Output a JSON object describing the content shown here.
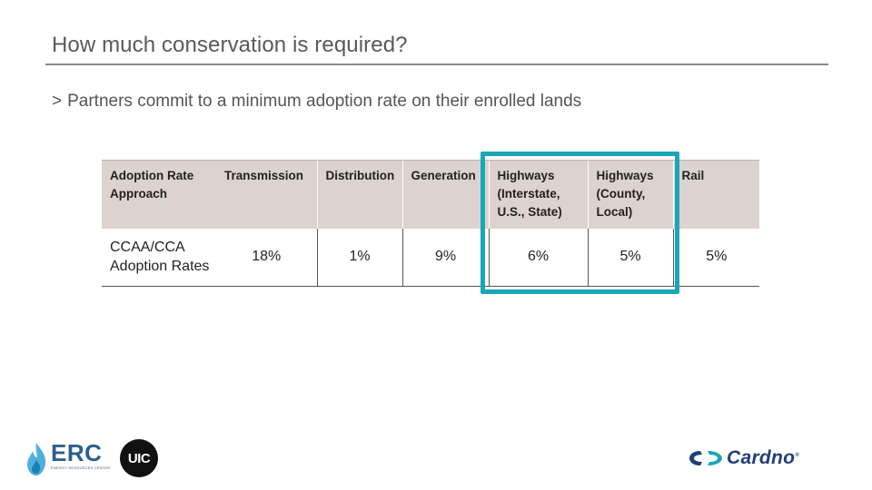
{
  "slide": {
    "title": "How much conservation is required?",
    "bullet_marker": ">",
    "bullet": "Partners commit to a minimum adoption rate on their enrolled lands"
  },
  "table": {
    "headers": [
      [
        "Adoption Rate",
        "Approach"
      ],
      [
        "Transmission"
      ],
      [
        "Distribution"
      ],
      [
        "Generation"
      ],
      [
        "Highways",
        "(Interstate,",
        "U.S., State)"
      ],
      [
        "Highways",
        "(County,",
        "Local)"
      ],
      [
        "Rail"
      ]
    ],
    "rows": [
      {
        "label": [
          "CCAA/CCA",
          "Adoption Rates"
        ],
        "values": [
          "18%",
          "1%",
          "9%",
          "6%",
          "5%",
          "5%"
        ]
      }
    ],
    "highlighted_columns": [
      "Highways (Interstate, U.S., State)",
      "Highways (County, Local)"
    ]
  },
  "colors": {
    "header_bg": "#dcd3cf",
    "highlight": "#1aa6b7",
    "rule": "#8c8c8c"
  },
  "logos": {
    "erc": {
      "word": "ERC",
      "sub": "ENERGY RESOURCES CENTER"
    },
    "uic": {
      "word": "UIC"
    },
    "cardno": {
      "word": "Cardno",
      "mark": "®"
    }
  }
}
